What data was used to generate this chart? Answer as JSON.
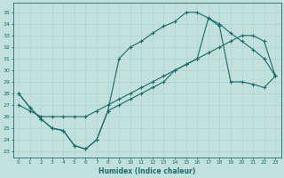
{
  "xlabel": "Humidex (Indice chaleur)",
  "xlim": [
    -0.5,
    23.5
  ],
  "ylim": [
    22.5,
    35.8
  ],
  "yticks": [
    23,
    24,
    25,
    26,
    27,
    28,
    29,
    30,
    31,
    32,
    33,
    34,
    35
  ],
  "xticks": [
    0,
    1,
    2,
    3,
    4,
    5,
    6,
    7,
    8,
    9,
    10,
    11,
    12,
    13,
    14,
    15,
    16,
    17,
    18,
    19,
    20,
    21,
    22,
    23
  ],
  "bg_color": "#c2e0dc",
  "grid_color": "#b0d4d0",
  "line_color": "#1a6b6b",
  "line1_x": [
    0,
    1,
    2,
    3,
    4,
    5,
    6,
    7,
    8,
    9,
    10,
    11,
    12,
    13,
    14,
    15,
    16,
    17,
    18,
    19,
    20,
    21,
    22,
    23
  ],
  "line1_y": [
    28,
    26.8,
    25.8,
    25.0,
    24.8,
    23.5,
    23.2,
    24.0,
    26.5,
    31.0,
    32.0,
    32.5,
    33.2,
    33.8,
    34.2,
    35.0,
    35.0,
    34.5,
    34.0,
    33.2,
    32.5,
    31.8,
    31.0,
    29.5
  ],
  "line2_x": [
    0,
    1,
    2,
    3,
    4,
    5,
    6,
    7,
    8,
    9,
    10,
    11,
    12,
    13,
    14,
    15,
    16,
    17,
    18,
    19,
    20,
    21,
    22,
    23
  ],
  "line2_y": [
    27.0,
    26.5,
    26.0,
    26.0,
    26.0,
    26.0,
    26.0,
    26.5,
    27.0,
    27.5,
    28.0,
    28.5,
    29.0,
    29.5,
    30.0,
    30.5,
    31.0,
    31.5,
    32.0,
    32.5,
    33.0,
    33.0,
    32.5,
    29.5
  ],
  "line3_x": [
    0,
    1,
    2,
    3,
    4,
    5,
    6,
    7,
    8,
    9,
    10,
    11,
    12,
    13,
    14,
    15,
    16,
    17,
    18,
    19,
    20,
    21,
    22,
    23
  ],
  "line3_y": [
    28,
    26.8,
    25.8,
    25.0,
    24.8,
    23.5,
    23.2,
    24.0,
    26.5,
    27.0,
    27.5,
    28.0,
    28.5,
    29.0,
    30.0,
    30.5,
    31.0,
    34.5,
    33.8,
    29.0,
    29.0,
    28.8,
    28.5,
    29.5
  ]
}
